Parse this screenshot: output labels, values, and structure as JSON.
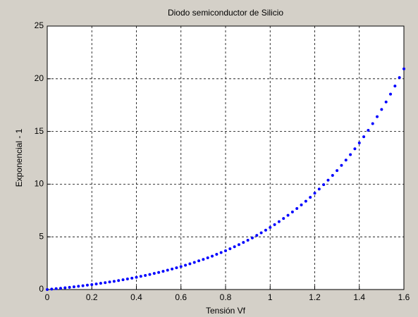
{
  "chart_data": {
    "type": "scatter",
    "title": "Diodo semiconductor de Silicio",
    "x_label": "Tensión Vf",
    "y_label": "Exponencial - 1",
    "color": "#0000ff",
    "grid": true,
    "xlim": [
      0,
      1.6
    ],
    "ylim": [
      0,
      25
    ],
    "xticks": [
      0,
      0.2,
      0.4,
      0.6,
      0.8,
      1,
      1.2,
      1.4,
      1.6
    ],
    "yticks": [
      0,
      5,
      10,
      15,
      20,
      25
    ],
    "x": [
      0,
      0.02,
      0.04,
      0.06,
      0.08,
      0.1,
      0.12,
      0.14,
      0.16,
      0.18,
      0.2,
      0.22,
      0.24,
      0.26,
      0.28,
      0.3,
      0.32,
      0.34,
      0.36,
      0.38,
      0.4,
      0.42,
      0.44,
      0.46,
      0.48,
      0.5,
      0.52,
      0.54,
      0.56,
      0.58,
      0.6,
      0.62,
      0.64,
      0.66,
      0.68,
      0.7,
      0.72,
      0.74,
      0.76,
      0.78,
      0.8,
      0.82,
      0.84,
      0.86,
      0.88,
      0.9,
      0.92,
      0.94,
      0.96,
      0.98,
      1,
      1.02,
      1.04,
      1.06,
      1.08,
      1.1,
      1.12,
      1.14,
      1.16,
      1.18,
      1.2,
      1.22,
      1.24,
      1.26,
      1.28,
      1.3,
      1.32,
      1.34,
      1.36,
      1.38,
      1.4,
      1.42,
      1.44,
      1.46,
      1.48,
      1.5,
      1.52,
      1.54,
      1.56,
      1.58,
      1.6
    ],
    "values": [
      0,
      0.04,
      0.08,
      0.12,
      0.17,
      0.21,
      0.26,
      0.31,
      0.36,
      0.42,
      0.47,
      0.53,
      0.59,
      0.65,
      0.72,
      0.78,
      0.85,
      0.93,
      1.0,
      1.08,
      1.16,
      1.25,
      1.34,
      1.43,
      1.53,
      1.62,
      1.73,
      1.84,
      1.95,
      2.06,
      2.18,
      2.31,
      2.44,
      2.57,
      2.72,
      2.86,
      3.01,
      3.17,
      3.34,
      3.51,
      3.68,
      3.87,
      4.06,
      4.26,
      4.47,
      4.68,
      4.9,
      5.14,
      5.38,
      5.63,
      5.89,
      6.16,
      6.44,
      6.74,
      7.04,
      7.36,
      7.69,
      8.03,
      8.38,
      8.75,
      9.14,
      9.53,
      9.95,
      10.38,
      10.83,
      11.29,
      11.78,
      12.28,
      12.8,
      13.35,
      13.91,
      14.5,
      15.11,
      15.74,
      16.4,
      17.09,
      17.8,
      18.54,
      19.31,
      20.11,
      20.94
    ]
  }
}
